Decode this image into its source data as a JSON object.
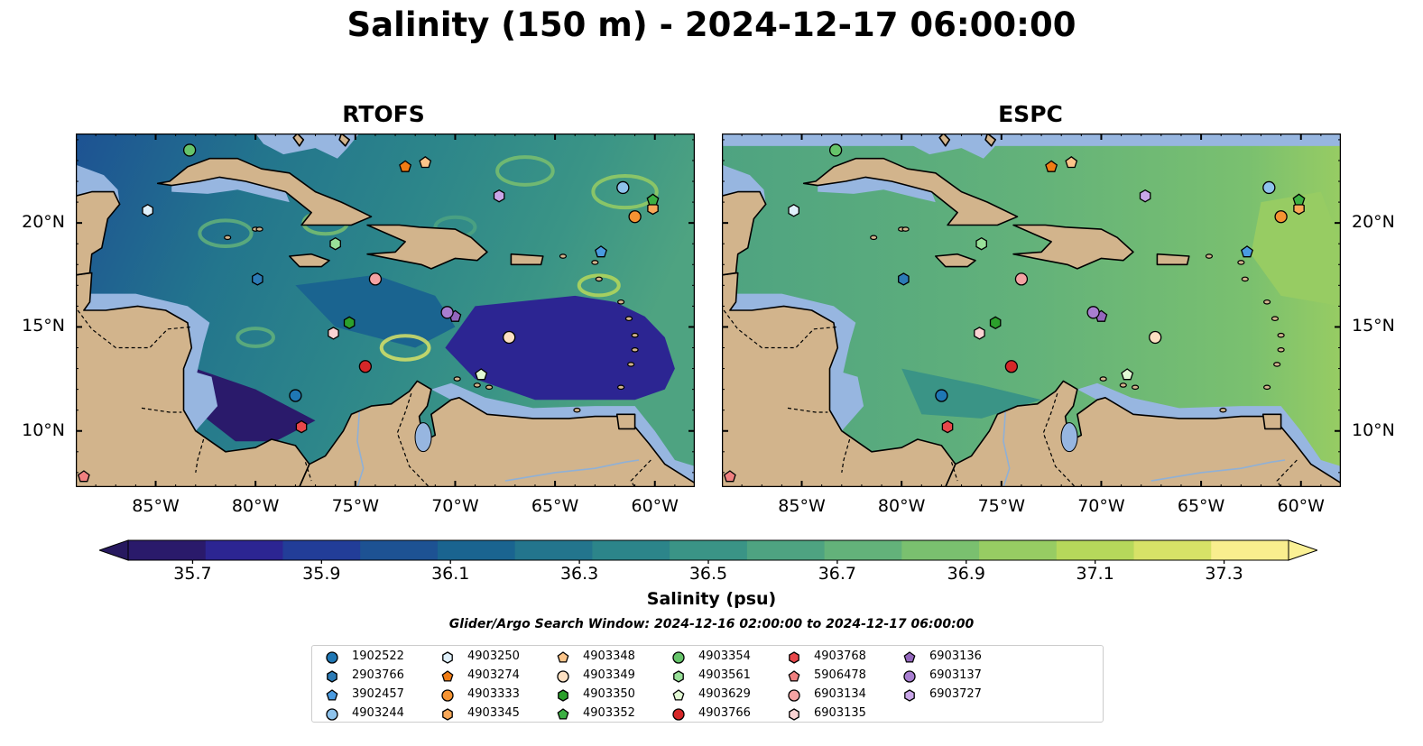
{
  "title": "Salinity (150 m) - 2024-12-17 06:00:00",
  "panels": [
    {
      "title": "RTOFS"
    },
    {
      "title": "ESPC"
    }
  ],
  "map_extent": {
    "lon": [
      -89,
      -58
    ],
    "lat": [
      7.3,
      24.3
    ]
  },
  "lat_ticks": [
    {
      "value": 20,
      "label": "20°N"
    },
    {
      "value": 15,
      "label": "15°N"
    },
    {
      "value": 10,
      "label": "10°N"
    }
  ],
  "lon_ticks": [
    {
      "value": -85,
      "label": "85°W"
    },
    {
      "value": -80,
      "label": "80°W"
    },
    {
      "value": -75,
      "label": "75°W"
    },
    {
      "value": -70,
      "label": "70°W"
    },
    {
      "value": -65,
      "label": "65°W"
    },
    {
      "value": -60,
      "label": "60°W"
    }
  ],
  "colorbar": {
    "label": "Salinity (psu)",
    "range": [
      35.6,
      37.4
    ],
    "extend": "both",
    "ticks": [
      {
        "value": 35.7,
        "label": "35.7"
      },
      {
        "value": 35.9,
        "label": "35.9"
      },
      {
        "value": 36.1,
        "label": "36.1"
      },
      {
        "value": 36.3,
        "label": "36.3"
      },
      {
        "value": 36.5,
        "label": "36.5"
      },
      {
        "value": 36.7,
        "label": "36.7"
      },
      {
        "value": 36.9,
        "label": "36.9"
      },
      {
        "value": 37.1,
        "label": "37.1"
      },
      {
        "value": 37.3,
        "label": "37.3"
      }
    ],
    "colors": [
      "#2a1a6b",
      "#2c2592",
      "#223d98",
      "#1d5293",
      "#1a6490",
      "#23758d",
      "#2c858a",
      "#3a9486",
      "#4ea381",
      "#63b27a",
      "#7ac06f",
      "#97cc63",
      "#b6d85b",
      "#d7e267",
      "#f9ee8e"
    ],
    "under_color": "#27195f",
    "over_color": "#fbf195"
  },
  "land_color": "#d2b48c",
  "shelf_color": "#97b6e0",
  "search_window": "Glider/Argo Search Window: 2024-12-16 02:00:00 to 2024-12-17 06:00:00",
  "floats": [
    {
      "id": "1902522",
      "marker": "circle",
      "color": "#1f77b4",
      "lon": -78.0,
      "lat": 11.7
    },
    {
      "id": "2903766",
      "marker": "hexagon",
      "color": "#2c7bb6",
      "lon": -79.9,
      "lat": 17.3
    },
    {
      "id": "3902457",
      "marker": "pentagon",
      "color": "#4a9be0",
      "lon": -62.7,
      "lat": 18.6
    },
    {
      "id": "4903244",
      "marker": "circle",
      "color": "#8ec3ec",
      "lon": -61.6,
      "lat": 21.7
    },
    {
      "id": "4903250",
      "marker": "hexagon",
      "color": "#dff0fb",
      "lon": -85.4,
      "lat": 20.6
    },
    {
      "id": "4903274",
      "marker": "pentagon",
      "color": "#f07c14",
      "lon": -72.5,
      "lat": 22.7
    },
    {
      "id": "4903333",
      "marker": "circle",
      "color": "#f59332",
      "lon": -61.0,
      "lat": 20.3
    },
    {
      "id": "4903345",
      "marker": "hexagon",
      "color": "#f9a858",
      "lon": -60.1,
      "lat": 20.7
    },
    {
      "id": "4903348",
      "marker": "pentagon",
      "color": "#fcc58a",
      "lon": -71.5,
      "lat": 22.9
    },
    {
      "id": "4903349",
      "marker": "circle",
      "color": "#fde0c2",
      "lon": -67.3,
      "lat": 14.5
    },
    {
      "id": "4903350",
      "marker": "hexagon",
      "color": "#2ca02c",
      "lon": -75.3,
      "lat": 15.2
    },
    {
      "id": "4903352",
      "marker": "pentagon",
      "color": "#3cb043",
      "lon": -60.1,
      "lat": 21.1
    },
    {
      "id": "4903354",
      "marker": "circle",
      "color": "#66c46a",
      "lon": -83.3,
      "lat": 23.5
    },
    {
      "id": "4903561",
      "marker": "hexagon",
      "color": "#98e098",
      "lon": -76.0,
      "lat": 19.0
    },
    {
      "id": "4903629",
      "marker": "pentagon",
      "color": "#e2f9d4",
      "lon": -68.7,
      "lat": 12.7
    },
    {
      "id": "4903766",
      "marker": "circle",
      "color": "#d62728",
      "lon": -74.5,
      "lat": 13.1
    },
    {
      "id": "4903768",
      "marker": "hexagon",
      "color": "#e8474a",
      "lon": -77.7,
      "lat": 10.2
    },
    {
      "id": "5906478",
      "marker": "pentagon",
      "color": "#f08080",
      "lon": -88.6,
      "lat": 7.8
    },
    {
      "id": "6903134",
      "marker": "circle",
      "color": "#f4a3a3",
      "lon": -74.0,
      "lat": 17.3
    },
    {
      "id": "6903135",
      "marker": "hexagon",
      "color": "#fbd3d3",
      "lon": -76.1,
      "lat": 14.7
    },
    {
      "id": "6903136",
      "marker": "pentagon",
      "color": "#9467bd",
      "lon": -70.0,
      "lat": 15.5
    },
    {
      "id": "6903137",
      "marker": "circle",
      "color": "#a87ed0",
      "lon": -70.4,
      "lat": 15.7
    },
    {
      "id": "6903727",
      "marker": "hexagon",
      "color": "#c9a6e8",
      "lon": -67.8,
      "lat": 21.3
    }
  ]
}
